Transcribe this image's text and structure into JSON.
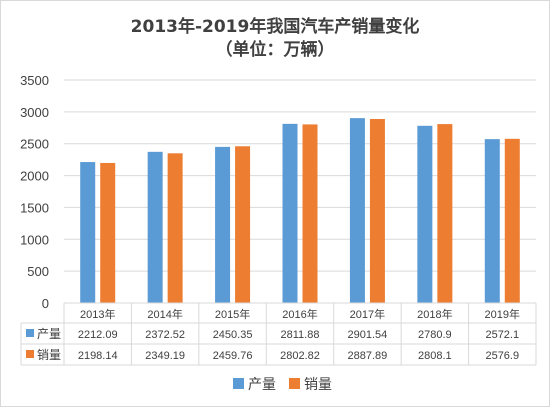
{
  "chart_data": {
    "type": "bar",
    "title": "2013年-2019年我国汽车产销量变化",
    "subtitle": "（单位：万辆）",
    "categories": [
      "2013年",
      "2014年",
      "2015年",
      "2016年",
      "2017年",
      "2018年",
      "2019年"
    ],
    "series": [
      {
        "name": "产量",
        "color": "#5b9bd5",
        "values": [
          2212.09,
          2372.52,
          2450.35,
          2811.88,
          2901.54,
          2780.9,
          2572.1
        ],
        "labels": [
          "2212.09",
          "2372.52",
          "2450.35",
          "2811.88",
          "2901.54",
          "2780.9",
          "2572.1"
        ]
      },
      {
        "name": "销量",
        "color": "#ed7d31",
        "values": [
          2198.14,
          2349.19,
          2459.76,
          2802.82,
          2887.89,
          2808.1,
          2576.9
        ],
        "labels": [
          "2198.14",
          "2349.19",
          "2459.76",
          "2802.82",
          "2887.89",
          "2808.1",
          "2576.9"
        ]
      }
    ],
    "yticks": [
      "0",
      "500",
      "1000",
      "1500",
      "2000",
      "2500",
      "3000",
      "3500"
    ],
    "ylim": [
      0,
      3500
    ],
    "grid": true,
    "data_table": true,
    "legend_position": "bottom"
  }
}
